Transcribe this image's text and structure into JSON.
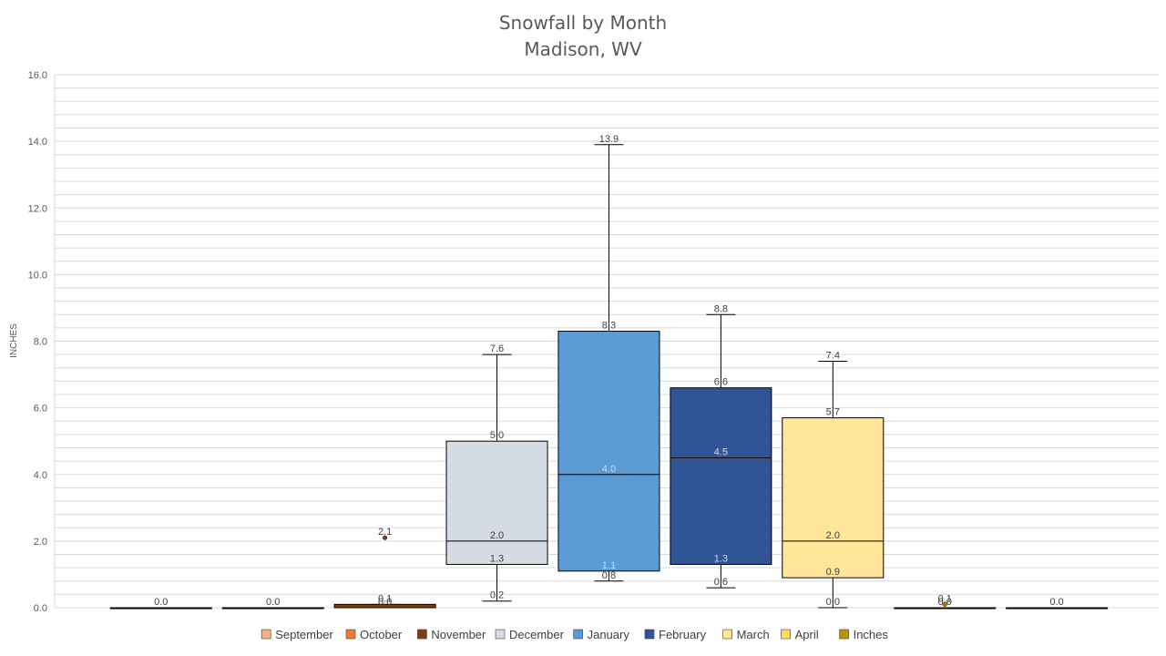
{
  "chart_data": {
    "type": "box",
    "title": "Snowfall by Month",
    "subtitle": "Madison, WV",
    "ylabel": "INCHES",
    "ylim": [
      0,
      16
    ],
    "yticks": [
      "0.0",
      "2.0",
      "4.0",
      "6.0",
      "8.0",
      "10.0",
      "12.0",
      "14.0",
      "16.0"
    ],
    "grid": true,
    "legend_position": "bottom",
    "legend": [
      {
        "label": "September",
        "color": "#f4b183"
      },
      {
        "label": "October",
        "color": "#ed7d31"
      },
      {
        "label": "November",
        "color": "#843c0c"
      },
      {
        "label": "December",
        "color": "#d6dce4"
      },
      {
        "label": "January",
        "color": "#5b9bd5"
      },
      {
        "label": "February",
        "color": "#2f5597"
      },
      {
        "label": "March",
        "color": "#ffe699"
      },
      {
        "label": "April",
        "color": "#ffd966"
      },
      {
        "label": "Inches",
        "color": "#bf9000"
      }
    ],
    "boxes": [
      {
        "min": 0.0,
        "q1": 0.0,
        "median": 0.0,
        "q3": 0.0,
        "max": 0.0,
        "fill": "#f4b183",
        "labels": [
          {
            "text": "0.0",
            "y": 0.0
          }
        ]
      },
      {
        "min": 0.0,
        "q1": 0.0,
        "median": 0.0,
        "q3": 0.0,
        "max": 0.0,
        "fill": "#ed7d31",
        "labels": [
          {
            "text": "0.0",
            "y": 0.0
          }
        ]
      },
      {
        "min": 0.0,
        "q1": 0.0,
        "median": 0.0,
        "q3": 0.1,
        "max": 0.1,
        "fill": "#843c0c",
        "outliers": [
          2.1
        ],
        "labels": [
          {
            "text": "0.1",
            "y": 0.1
          },
          {
            "text": "0.0",
            "y": 0.0
          },
          {
            "text": "2.1",
            "y": 2.1
          }
        ]
      },
      {
        "min": 0.2,
        "q1": 1.3,
        "median": 2.0,
        "q3": 5.0,
        "max": 7.6,
        "fill": "#d6dce4",
        "labels": [
          {
            "text": "7.6",
            "y": 7.6
          },
          {
            "text": "5.0",
            "y": 5.0
          },
          {
            "text": "2.0",
            "y": 2.0
          },
          {
            "text": "1.3",
            "y": 1.3
          },
          {
            "text": "0.2",
            "y": 0.2
          }
        ]
      },
      {
        "min": 0.8,
        "q1": 1.1,
        "median": 4.0,
        "q3": 8.3,
        "max": 13.9,
        "fill": "#5b9bd5",
        "labels": [
          {
            "text": "13.9",
            "y": 13.9
          },
          {
            "text": "8.3",
            "y": 8.3
          },
          {
            "text": "4.0",
            "y": 4.0,
            "light": true
          },
          {
            "text": "1.1",
            "y": 1.1,
            "light": true
          },
          {
            "text": "0.8",
            "y": 0.8
          }
        ]
      },
      {
        "min": 0.6,
        "q1": 1.3,
        "median": 4.5,
        "q3": 6.6,
        "max": 8.8,
        "fill": "#2f5597",
        "labels": [
          {
            "text": "8.8",
            "y": 8.8
          },
          {
            "text": "6.6",
            "y": 6.6
          },
          {
            "text": "4.5",
            "y": 4.5,
            "light": true
          },
          {
            "text": "1.3",
            "y": 1.3,
            "light": true
          },
          {
            "text": "0.6",
            "y": 0.6
          }
        ]
      },
      {
        "min": 0.0,
        "q1": 0.9,
        "median": 2.0,
        "q3": 5.7,
        "max": 7.4,
        "fill": "#ffe699",
        "labels": [
          {
            "text": "7.4",
            "y": 7.4
          },
          {
            "text": "5.7",
            "y": 5.7
          },
          {
            "text": "2.0",
            "y": 2.0
          },
          {
            "text": "0.9",
            "y": 0.9
          },
          {
            "text": "0.0",
            "y": 0.0
          }
        ]
      },
      {
        "min": 0.0,
        "q1": 0.0,
        "median": 0.0,
        "q3": 0.0,
        "max": 0.0,
        "fill": "#ffd966",
        "outliers": [
          0.1
        ],
        "labels": [
          {
            "text": "0.1",
            "y": 0.1
          },
          {
            "text": "0.0",
            "y": 0.0
          }
        ]
      },
      {
        "min": 0.0,
        "q1": 0.0,
        "median": 0.0,
        "q3": 0.0,
        "max": 0.0,
        "fill": "#bf9000",
        "labels": [
          {
            "text": "0.0",
            "y": 0.0
          }
        ]
      }
    ]
  }
}
